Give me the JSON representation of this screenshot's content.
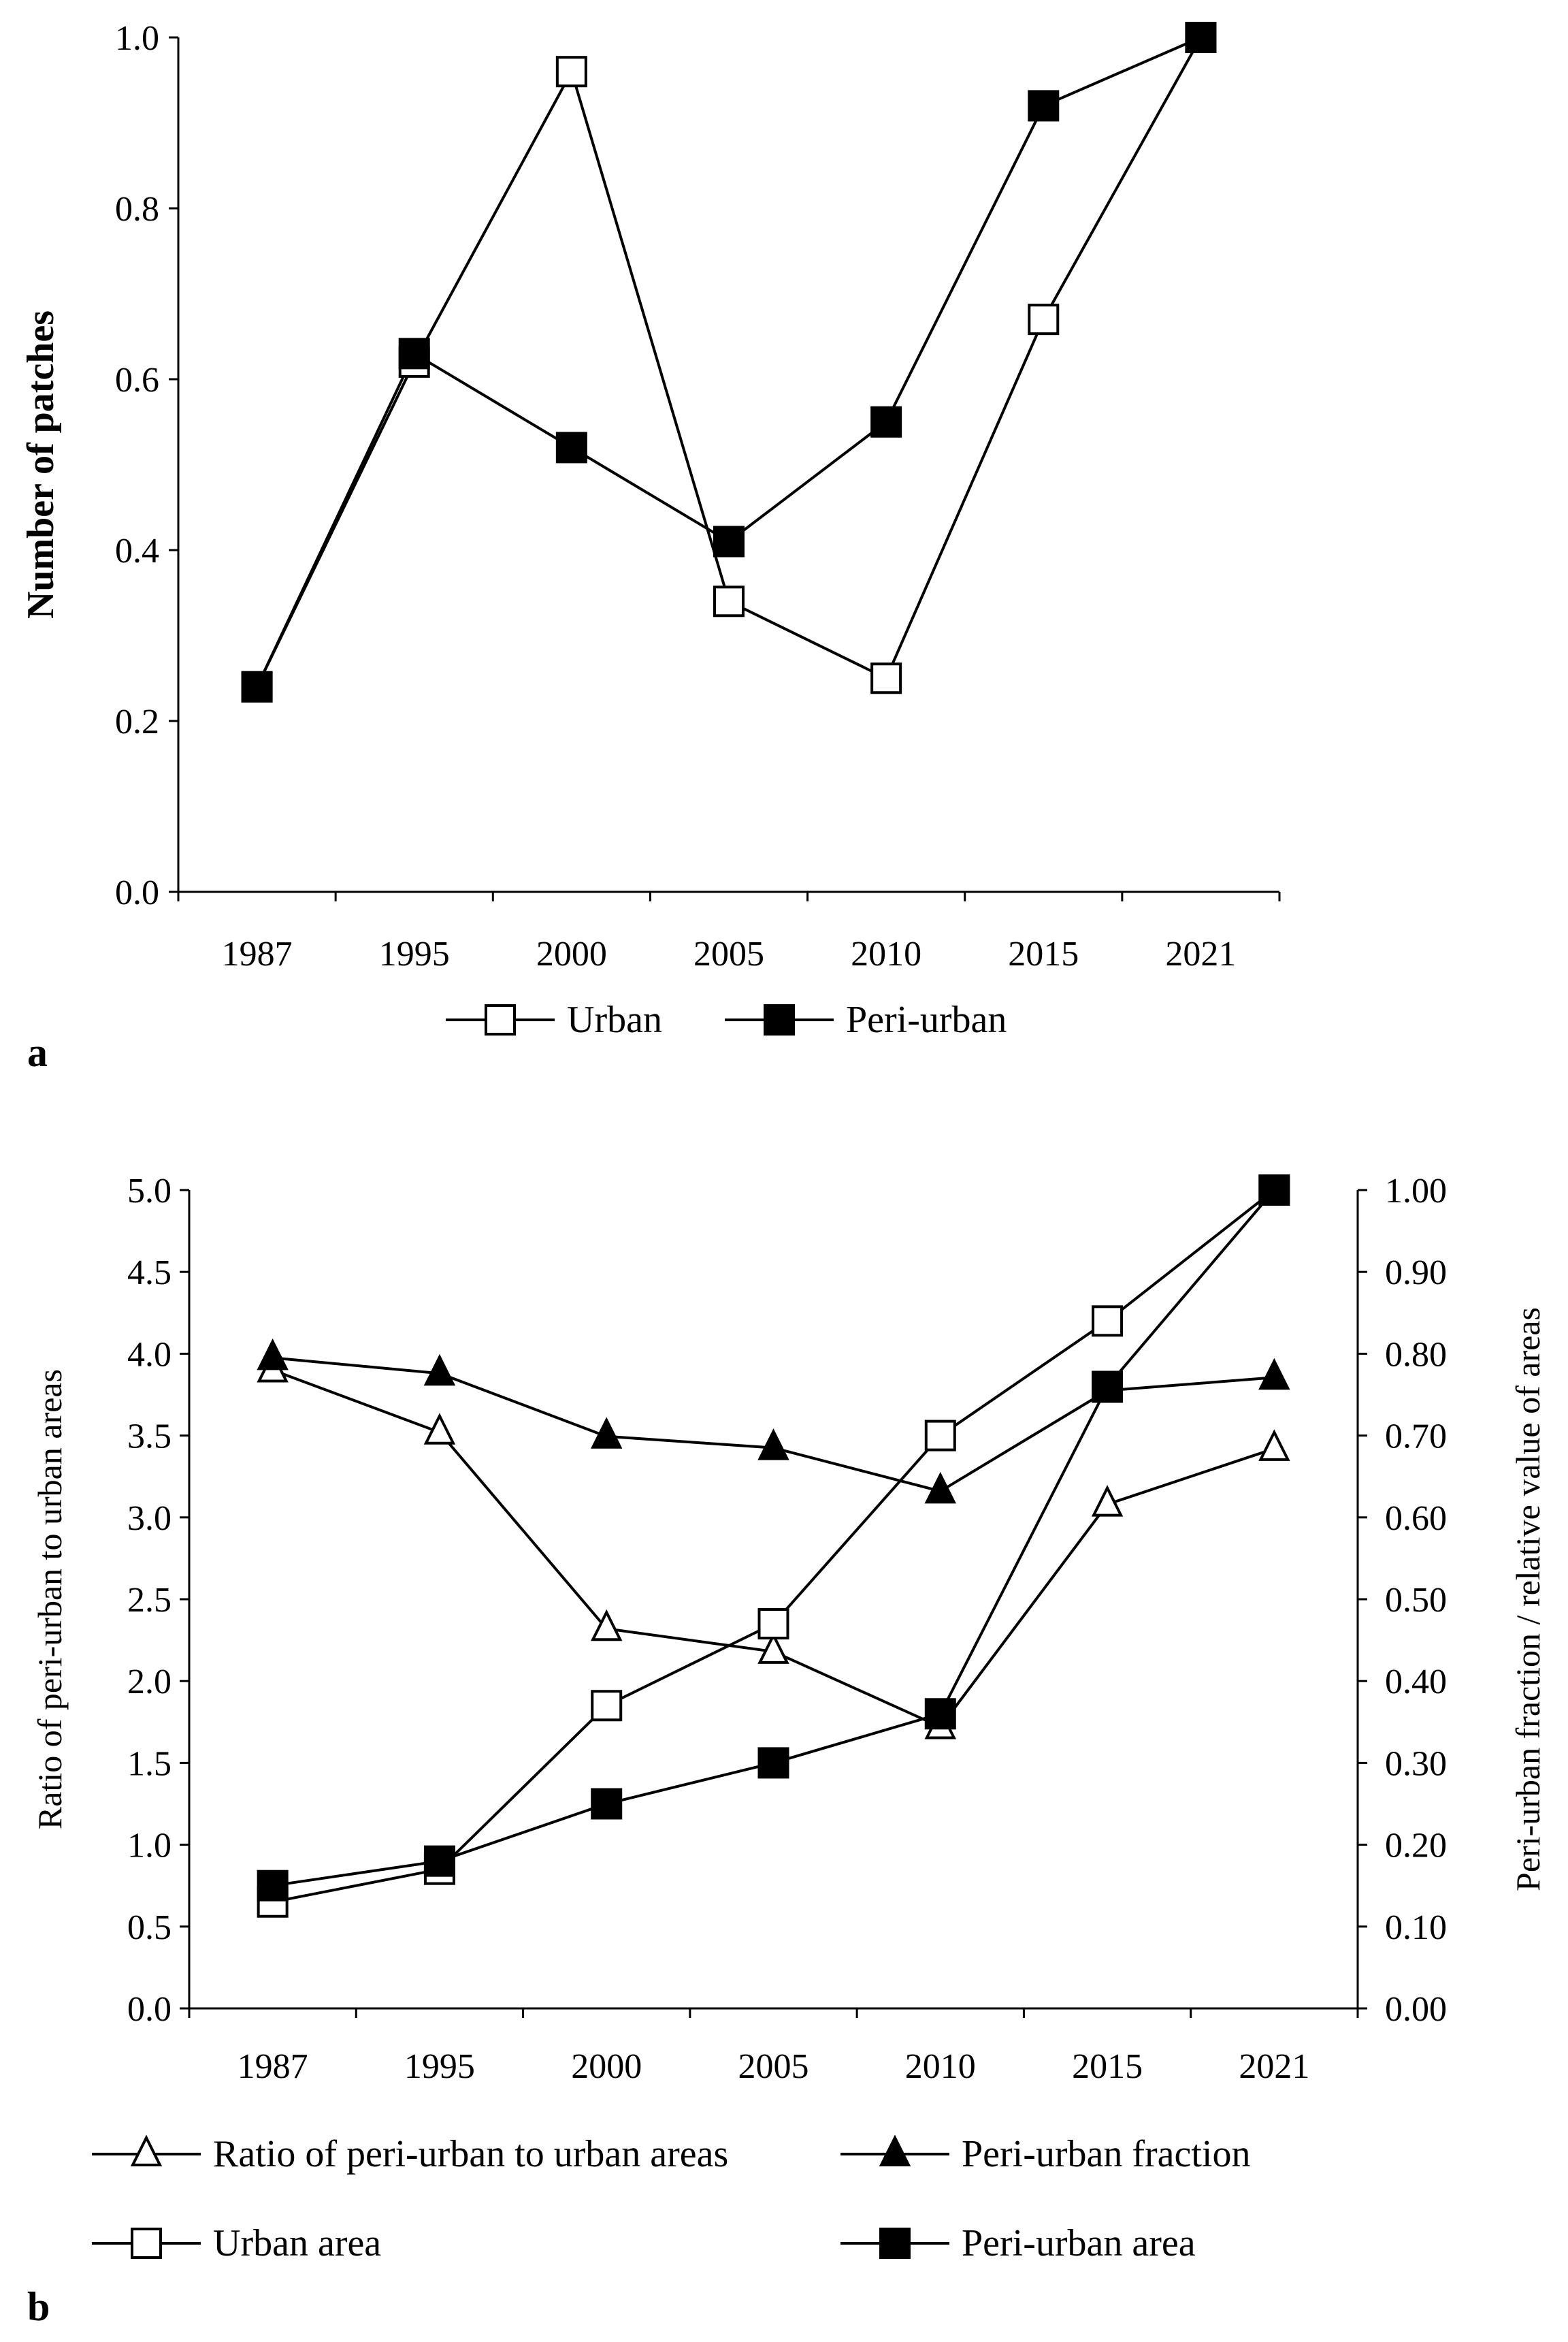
{
  "colors": {
    "ink": "#000000",
    "paper": "#ffffff"
  },
  "panels": {
    "a_label": "a",
    "b_label": "b"
  },
  "chart_data": [
    {
      "type": "line",
      "panel": "a",
      "title": "",
      "xlabel": "",
      "ylabel": "Number of patches",
      "categories": [
        "1987",
        "1995",
        "2000",
        "2005",
        "2010",
        "2015",
        "2021"
      ],
      "ylim": [
        0,
        1.0
      ],
      "yticks": [
        "0.0",
        "0.2",
        "0.4",
        "0.6",
        "0.8",
        "1.0"
      ],
      "series": [
        {
          "name": "Urban",
          "marker": "open-square",
          "values": [
            0.24,
            0.62,
            0.96,
            0.34,
            0.25,
            0.67,
            1.0
          ]
        },
        {
          "name": "Peri-urban",
          "marker": "filled-square",
          "values": [
            0.24,
            0.63,
            0.52,
            0.41,
            0.55,
            0.92,
            1.0
          ]
        }
      ],
      "legend_position": "bottom"
    },
    {
      "type": "line",
      "panel": "b",
      "title": "",
      "xlabel": "",
      "ylabel": "Ratio of peri-urban to urban areas",
      "y2label": "Peri-urban fraction / relative value of areas",
      "categories": [
        "1987",
        "1995",
        "2000",
        "2005",
        "2010",
        "2015",
        "2021"
      ],
      "ylim": [
        0,
        5.0
      ],
      "y2lim": [
        0,
        1.0
      ],
      "yticks": [
        "0.0",
        "0.5",
        "1.0",
        "1.5",
        "2.0",
        "2.5",
        "3.0",
        "3.5",
        "4.0",
        "4.5",
        "5.0"
      ],
      "y2ticks": [
        "0.00",
        "0.10",
        "0.20",
        "0.30",
        "0.40",
        "0.50",
        "0.60",
        "0.70",
        "0.80",
        "0.90",
        "1.00"
      ],
      "series": [
        {
          "name": "Ratio of peri-urban to urban areas",
          "axis": "left",
          "marker": "open-triangle",
          "values": [
            3.9,
            3.52,
            2.32,
            2.18,
            1.72,
            3.08,
            3.42
          ]
        },
        {
          "name": "Peri-urban fraction",
          "axis": "right",
          "marker": "filled-triangle",
          "values": [
            0.795,
            0.776,
            0.699,
            0.685,
            0.632,
            0.755,
            0.771
          ]
        },
        {
          "name": "Urban area",
          "axis": "right",
          "marker": "open-square",
          "values": [
            0.13,
            0.17,
            0.37,
            0.47,
            0.7,
            0.84,
            1.0
          ]
        },
        {
          "name": "Peri-urban area",
          "axis": "right",
          "marker": "filled-square",
          "values": [
            0.15,
            0.18,
            0.25,
            0.3,
            0.36,
            0.76,
            1.0
          ]
        }
      ],
      "legend_position": "bottom"
    }
  ]
}
